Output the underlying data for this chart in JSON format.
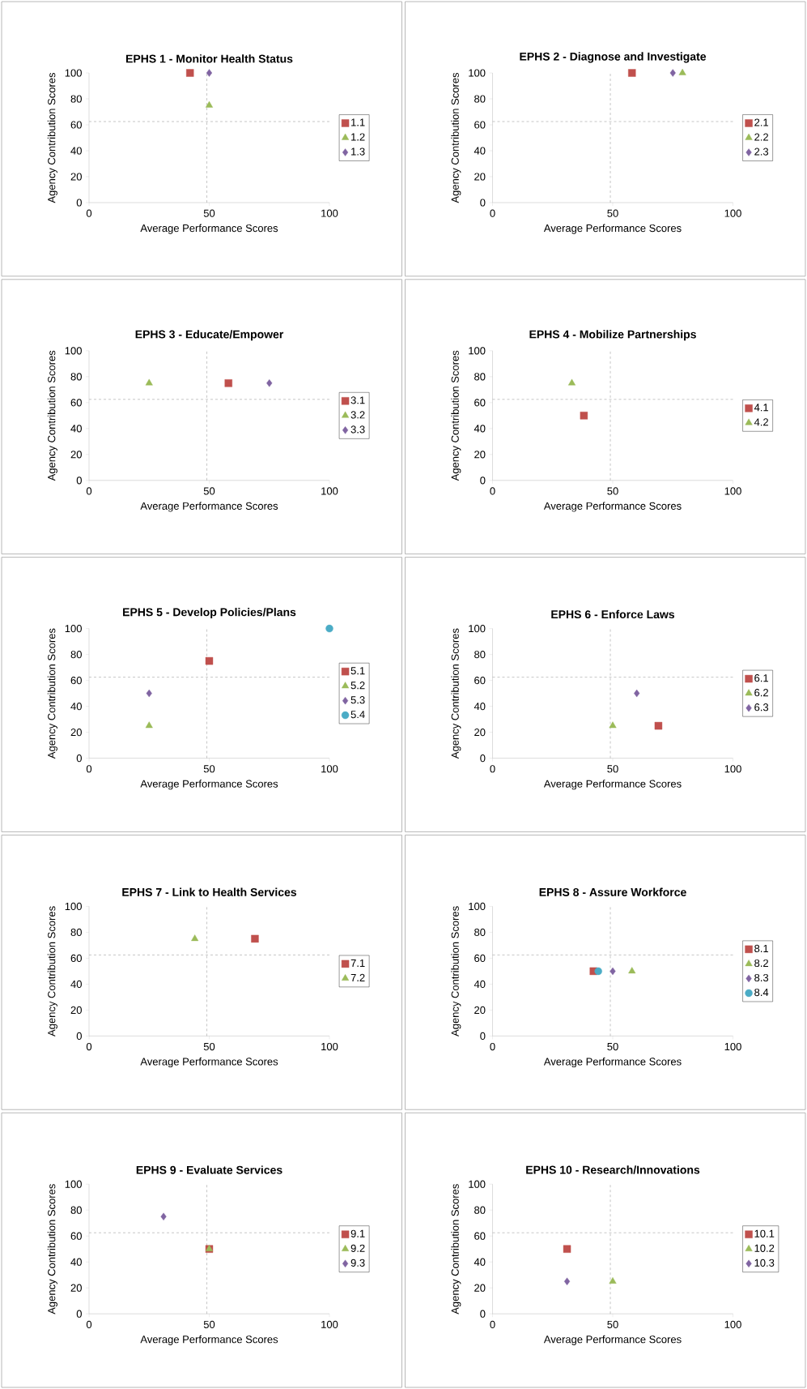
{
  "chart_data": [
    {
      "type": "scatter",
      "title": "EPHS 1 - Monitor Health Status",
      "xlabel": "Average Performance Scores",
      "ylabel": "Agency Contribution Scores",
      "xlim": [
        0,
        100
      ],
      "ylim": [
        0,
        100
      ],
      "xticks": [
        0,
        50,
        100
      ],
      "yticks": [
        0,
        20,
        40,
        60,
        80,
        100
      ],
      "legend": "right",
      "ref_lines": [
        {
          "axis": "x",
          "value": 49,
          "color": "#a0a0a0",
          "line_style": "dashed"
        },
        {
          "axis": "y",
          "value": 62.5,
          "color": "#a0a0a0",
          "line_style": "dashed"
        }
      ],
      "series": [
        {
          "name": "1.1",
          "color": "#c0504d",
          "marker": "square",
          "x": [
            42
          ],
          "values": [
            100
          ]
        },
        {
          "name": "1.2",
          "color": "#9bbb59",
          "marker": "triangle",
          "x": [
            50
          ],
          "values": [
            75
          ]
        },
        {
          "name": "1.3",
          "color": "#8064a2",
          "marker": "diamond",
          "x": [
            50
          ],
          "values": [
            100
          ]
        }
      ]
    },
    {
      "type": "scatter",
      "title": "EPHS 2 - Diagnose and Investigate",
      "xlabel": "Average Performance Scores",
      "ylabel": "Agency Contribution Scores",
      "xlim": [
        0,
        100
      ],
      "ylim": [
        0,
        100
      ],
      "xticks": [
        0,
        50,
        100
      ],
      "yticks": [
        0,
        20,
        40,
        60,
        80,
        100
      ],
      "legend": "right",
      "ref_lines": [
        {
          "axis": "x",
          "value": 49,
          "color": "#a0a0a0",
          "line_style": "dashed"
        },
        {
          "axis": "y",
          "value": 62.5,
          "color": "#a0a0a0",
          "line_style": "dashed"
        }
      ],
      "series": [
        {
          "name": "2.1",
          "color": "#c0504d",
          "marker": "square",
          "x": [
            58
          ],
          "values": [
            100
          ]
        },
        {
          "name": "2.2",
          "color": "#9bbb59",
          "marker": "triangle",
          "x": [
            79
          ],
          "values": [
            100
          ]
        },
        {
          "name": "2.3",
          "color": "#8064a2",
          "marker": "diamond",
          "x": [
            75
          ],
          "values": [
            100
          ]
        }
      ]
    },
    {
      "type": "scatter",
      "title": "EPHS 3 - Educate/Empower",
      "xlabel": "Average Performance Scores",
      "ylabel": "Agency Contribution Scores",
      "xlim": [
        0,
        100
      ],
      "ylim": [
        0,
        100
      ],
      "xticks": [
        0,
        50,
        100
      ],
      "yticks": [
        0,
        20,
        40,
        60,
        80,
        100
      ],
      "legend": "right",
      "ref_lines": [
        {
          "axis": "x",
          "value": 49,
          "color": "#a0a0a0",
          "line_style": "dashed"
        },
        {
          "axis": "y",
          "value": 62.5,
          "color": "#a0a0a0",
          "line_style": "dashed"
        }
      ],
      "series": [
        {
          "name": "3.1",
          "color": "#c0504d",
          "marker": "square",
          "x": [
            58
          ],
          "values": [
            75
          ]
        },
        {
          "name": "3.2",
          "color": "#9bbb59",
          "marker": "triangle",
          "x": [
            25
          ],
          "values": [
            75
          ]
        },
        {
          "name": "3.3",
          "color": "#8064a2",
          "marker": "diamond",
          "x": [
            75
          ],
          "values": [
            75
          ]
        }
      ]
    },
    {
      "type": "scatter",
      "title": "EPHS 4 - Mobilize Partnerships",
      "xlabel": "Average Performance Scores",
      "ylabel": "Agency Contribution Scores",
      "xlim": [
        0,
        100
      ],
      "ylim": [
        0,
        100
      ],
      "xticks": [
        0,
        50,
        100
      ],
      "yticks": [
        0,
        20,
        40,
        60,
        80,
        100
      ],
      "legend": "right",
      "ref_lines": [
        {
          "axis": "x",
          "value": 49,
          "color": "#a0a0a0",
          "line_style": "dashed"
        },
        {
          "axis": "y",
          "value": 62.5,
          "color": "#a0a0a0",
          "line_style": "dashed"
        }
      ],
      "series": [
        {
          "name": "4.1",
          "color": "#c0504d",
          "marker": "square",
          "x": [
            38
          ],
          "values": [
            50
          ]
        },
        {
          "name": "4.2",
          "color": "#9bbb59",
          "marker": "triangle",
          "x": [
            33
          ],
          "values": [
            75
          ]
        }
      ]
    },
    {
      "type": "scatter",
      "title": "EPHS 5 - Develop Policies/Plans",
      "xlabel": "Average Performance Scores",
      "ylabel": "Agency Contribution Scores",
      "xlim": [
        0,
        100
      ],
      "ylim": [
        0,
        100
      ],
      "xticks": [
        0,
        50,
        100
      ],
      "yticks": [
        0,
        20,
        40,
        60,
        80,
        100
      ],
      "legend": "right",
      "ref_lines": [
        {
          "axis": "x",
          "value": 49,
          "color": "#a0a0a0",
          "line_style": "dashed"
        },
        {
          "axis": "y",
          "value": 62.5,
          "color": "#a0a0a0",
          "line_style": "dashed"
        }
      ],
      "series": [
        {
          "name": "5.1",
          "color": "#c0504d",
          "marker": "square",
          "x": [
            50
          ],
          "values": [
            75
          ]
        },
        {
          "name": "5.2",
          "color": "#9bbb59",
          "marker": "triangle",
          "x": [
            25
          ],
          "values": [
            25
          ]
        },
        {
          "name": "5.3",
          "color": "#8064a2",
          "marker": "diamond",
          "x": [
            25
          ],
          "values": [
            50
          ]
        },
        {
          "name": "5.4",
          "color": "#4bacc6",
          "marker": "circle",
          "x": [
            100
          ],
          "values": [
            100
          ]
        }
      ]
    },
    {
      "type": "scatter",
      "title": "EPHS 6 - Enforce Laws",
      "xlabel": "Average Performance Scores",
      "ylabel": "Agency Contribution Scores",
      "xlim": [
        0,
        100
      ],
      "ylim": [
        0,
        100
      ],
      "xticks": [
        0,
        50,
        100
      ],
      "yticks": [
        0,
        20,
        40,
        60,
        80,
        100
      ],
      "legend": "right",
      "ref_lines": [
        {
          "axis": "x",
          "value": 49,
          "color": "#a0a0a0",
          "line_style": "dashed"
        },
        {
          "axis": "y",
          "value": 62.5,
          "color": "#a0a0a0",
          "line_style": "dashed"
        }
      ],
      "series": [
        {
          "name": "6.1",
          "color": "#c0504d",
          "marker": "square",
          "x": [
            69
          ],
          "values": [
            25
          ]
        },
        {
          "name": "6.2",
          "color": "#9bbb59",
          "marker": "triangle",
          "x": [
            50
          ],
          "values": [
            25
          ]
        },
        {
          "name": "6.3",
          "color": "#8064a2",
          "marker": "diamond",
          "x": [
            60
          ],
          "values": [
            50
          ]
        }
      ]
    },
    {
      "type": "scatter",
      "title": "EPHS 7 - Link to Health Services",
      "xlabel": "Average Performance Scores",
      "ylabel": "Agency Contribution Scores",
      "xlim": [
        0,
        100
      ],
      "ylim": [
        0,
        100
      ],
      "xticks": [
        0,
        50,
        100
      ],
      "yticks": [
        0,
        20,
        40,
        60,
        80,
        100
      ],
      "legend": "right",
      "ref_lines": [
        {
          "axis": "x",
          "value": 49,
          "color": "#a0a0a0",
          "line_style": "dashed"
        },
        {
          "axis": "y",
          "value": 62.5,
          "color": "#a0a0a0",
          "line_style": "dashed"
        }
      ],
      "series": [
        {
          "name": "7.1",
          "color": "#c0504d",
          "marker": "square",
          "x": [
            69
          ],
          "values": [
            75
          ]
        },
        {
          "name": "7.2",
          "color": "#9bbb59",
          "marker": "triangle",
          "x": [
            44
          ],
          "values": [
            75
          ]
        }
      ]
    },
    {
      "type": "scatter",
      "title": "EPHS 8 - Assure Workforce",
      "xlabel": "Average Performance Scores",
      "ylabel": "Agency Contribution Scores",
      "xlim": [
        0,
        100
      ],
      "ylim": [
        0,
        100
      ],
      "xticks": [
        0,
        50,
        100
      ],
      "yticks": [
        0,
        20,
        40,
        60,
        80,
        100
      ],
      "legend": "right",
      "ref_lines": [
        {
          "axis": "x",
          "value": 49,
          "color": "#a0a0a0",
          "line_style": "dashed"
        },
        {
          "axis": "y",
          "value": 62.5,
          "color": "#a0a0a0",
          "line_style": "dashed"
        }
      ],
      "series": [
        {
          "name": "8.1",
          "color": "#c0504d",
          "marker": "square",
          "x": [
            42
          ],
          "values": [
            50
          ]
        },
        {
          "name": "8.2",
          "color": "#9bbb59",
          "marker": "triangle",
          "x": [
            58
          ],
          "values": [
            50
          ]
        },
        {
          "name": "8.3",
          "color": "#8064a2",
          "marker": "diamond",
          "x": [
            50
          ],
          "values": [
            50
          ]
        },
        {
          "name": "8.4",
          "color": "#4bacc6",
          "marker": "circle",
          "x": [
            44
          ],
          "values": [
            50
          ]
        }
      ]
    },
    {
      "type": "scatter",
      "title": "EPHS 9 - Evaluate Services",
      "xlabel": "Average Performance Scores",
      "ylabel": "Agency Contribution Scores",
      "xlim": [
        0,
        100
      ],
      "ylim": [
        0,
        100
      ],
      "xticks": [
        0,
        50,
        100
      ],
      "yticks": [
        0,
        20,
        40,
        60,
        80,
        100
      ],
      "legend": "right",
      "ref_lines": [
        {
          "axis": "x",
          "value": 49,
          "color": "#a0a0a0",
          "line_style": "dashed"
        },
        {
          "axis": "y",
          "value": 62.5,
          "color": "#a0a0a0",
          "line_style": "dashed"
        }
      ],
      "series": [
        {
          "name": "9.1",
          "color": "#c0504d",
          "marker": "square",
          "x": [
            50
          ],
          "values": [
            50
          ]
        },
        {
          "name": "9.2",
          "color": "#9bbb59",
          "marker": "triangle",
          "x": [
            50
          ],
          "values": [
            50
          ]
        },
        {
          "name": "9.3",
          "color": "#8064a2",
          "marker": "diamond",
          "x": [
            31
          ],
          "values": [
            75
          ]
        }
      ]
    },
    {
      "type": "scatter",
      "title": "EPHS 10 - Research/Innovations",
      "xlabel": "Average Performance Scores",
      "ylabel": "Agency Contribution Scores",
      "xlim": [
        0,
        100
      ],
      "ylim": [
        0,
        100
      ],
      "xticks": [
        0,
        50,
        100
      ],
      "yticks": [
        0,
        20,
        40,
        60,
        80,
        100
      ],
      "legend": "right",
      "ref_lines": [
        {
          "axis": "x",
          "value": 49,
          "color": "#a0a0a0",
          "line_style": "dashed"
        },
        {
          "axis": "y",
          "value": 62.5,
          "color": "#a0a0a0",
          "line_style": "dashed"
        }
      ],
      "series": [
        {
          "name": "10.1",
          "color": "#c0504d",
          "marker": "square",
          "x": [
            31
          ],
          "values": [
            50
          ]
        },
        {
          "name": "10.2",
          "color": "#9bbb59",
          "marker": "triangle",
          "x": [
            50
          ],
          "values": [
            25
          ]
        },
        {
          "name": "10.3",
          "color": "#8064a2",
          "marker": "diamond",
          "x": [
            31
          ],
          "values": [
            25
          ]
        }
      ]
    }
  ]
}
